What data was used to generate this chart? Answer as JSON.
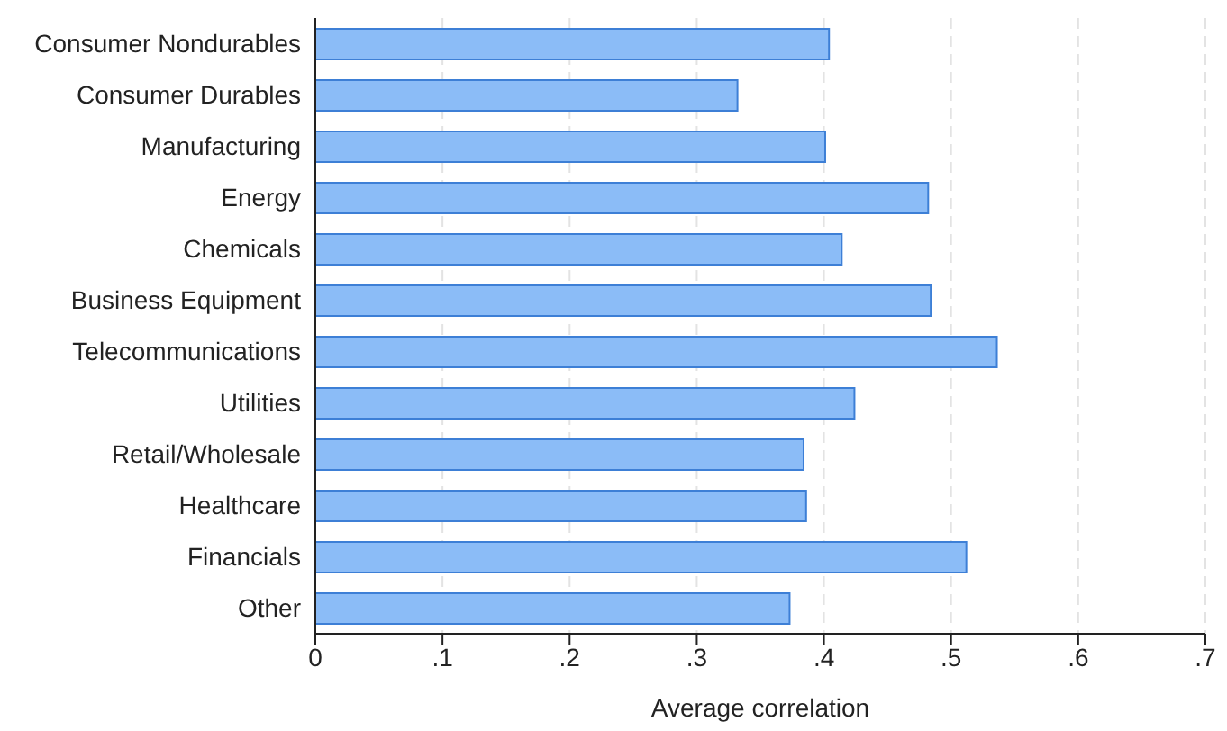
{
  "chart_data": {
    "type": "bar",
    "orientation": "horizontal",
    "xlabel": "Average correlation",
    "categories": [
      "Consumer Nondurables",
      "Consumer Durables",
      "Manufacturing",
      "Energy",
      "Chemicals",
      "Business Equipment",
      "Telecommunications",
      "Utilities",
      "Retail/Wholesale",
      "Healthcare",
      "Financials",
      "Other"
    ],
    "values": [
      0.404,
      0.332,
      0.401,
      0.482,
      0.414,
      0.484,
      0.536,
      0.424,
      0.384,
      0.386,
      0.512,
      0.373
    ],
    "color": "#8bbcf7",
    "xlim": [
      0,
      0.7
    ],
    "xticks": [
      0,
      {
        "value": 0.1,
        "label": ".1"
      },
      {
        "value": 0.2,
        "label": ".2"
      },
      {
        "value": 0.3,
        "label": ".3"
      },
      {
        "value": 0.4,
        "label": ".4"
      },
      {
        "value": 0.5,
        "label": ".5"
      },
      {
        "value": 0.6,
        "label": ".6"
      },
      {
        "value": 0.7,
        "label": ".7"
      }
    ],
    "grid": "x"
  }
}
